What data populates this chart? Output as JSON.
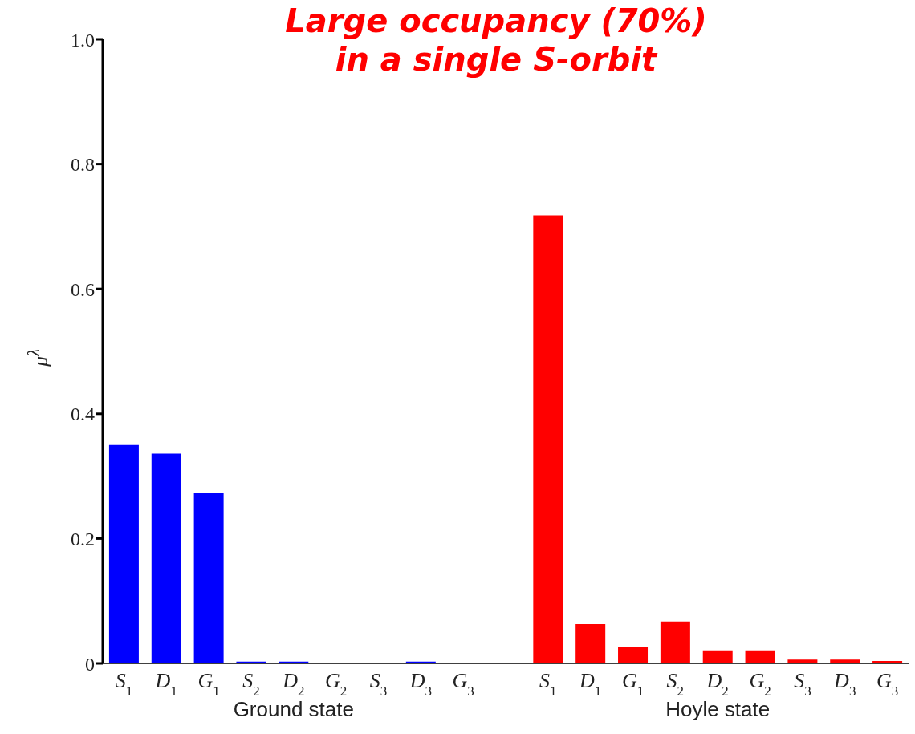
{
  "chart_data": {
    "type": "bar",
    "title": "Large occupancy (70%)\nin a single S-orbit",
    "ylabel": "μ$^{λ}$",
    "categories": [
      "S$_{1}$",
      "D$_{1}$",
      "G$_{1}$",
      "S$_{2}$",
      "D$_{2}$",
      "G$_{2}$",
      "S$_{3}$",
      "D$_{3}$",
      "G$_{3}$",
      null,
      "S$_{1}$",
      "D$_{1}$",
      "G$_{1}$",
      "S$_{2}$",
      "D$_{2}$",
      "G$_{2}$",
      "S$_{3}$",
      "D$_{3}$",
      "G$_{3}$"
    ],
    "values": [
      0.35,
      0.336,
      0.273,
      0.003,
      0.003,
      0,
      0,
      0.003,
      0,
      null,
      0.718,
      0.063,
      0.027,
      0.067,
      0.021,
      0.021,
      0.006,
      0.006,
      0.004
    ],
    "colors": [
      "#0000ff",
      "#0000ff",
      "#0000ff",
      "#0000ff",
      "#0000ff",
      "#0000ff",
      "#0000ff",
      "#0000ff",
      "#0000ff",
      "#0000ff",
      "#ff0000",
      "#ff0000",
      "#ff0000",
      "#ff0000",
      "#ff0000",
      "#ff0000",
      "#ff0000",
      "#ff0000",
      "#ff0000"
    ],
    "ylim": [
      0,
      1
    ],
    "yticks": [
      0,
      0.2,
      0.4,
      0.6,
      0.8,
      {
        "value": 1,
        "label": "1.0"
      }
    ],
    "annotations": [
      "Ground state",
      "Hoyle state"
    ],
    "grid": false,
    "legend": false
  }
}
